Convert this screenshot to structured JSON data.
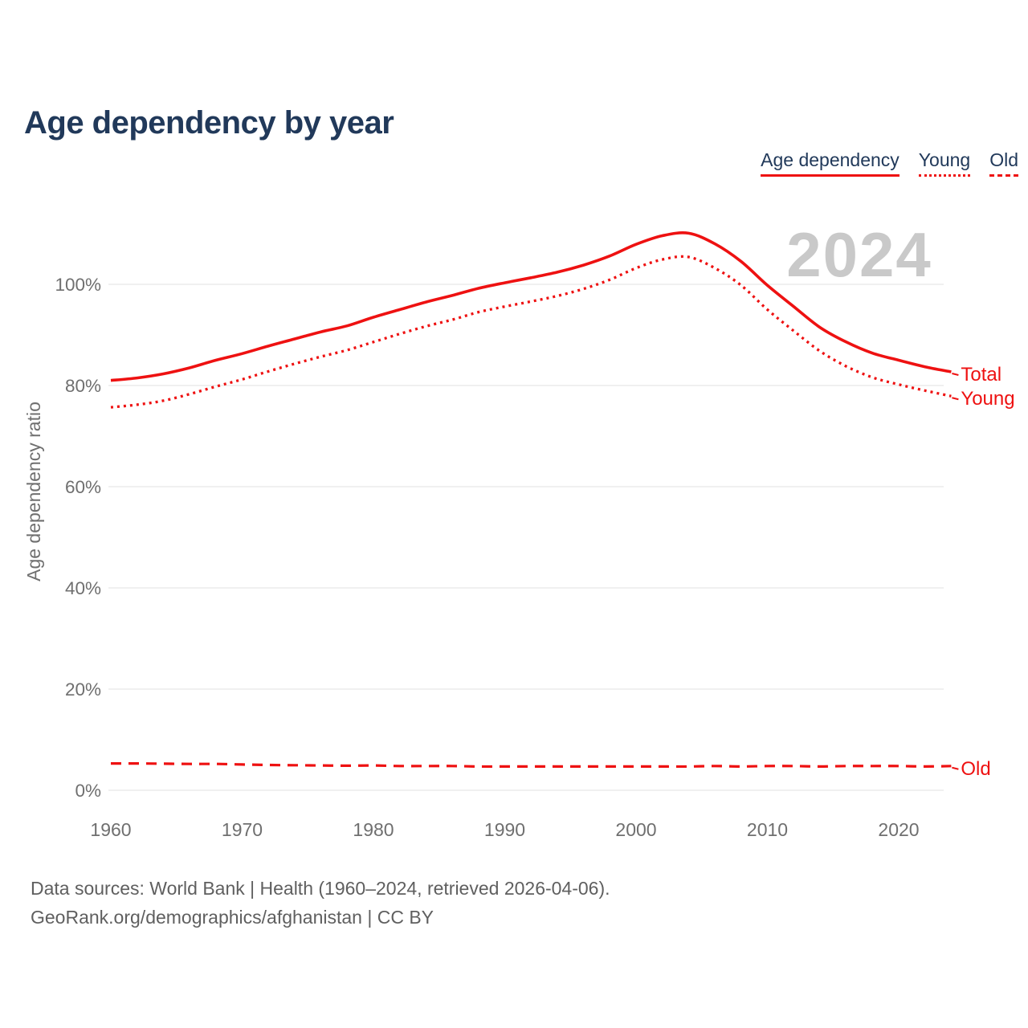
{
  "page": {
    "title": "Age dependency by year",
    "watermark": "2024",
    "footer_line1": "Data sources: World Bank | Health (1960–2024, retrieved 2026-04-06).",
    "footer_line2": "GeoRank.org/demographics/afghanistan | CC BY"
  },
  "legend": {
    "items": [
      {
        "label": "Age dependency",
        "style": "solid"
      },
      {
        "label": "Young",
        "style": "dotted"
      },
      {
        "label": "Old",
        "style": "dashed"
      }
    ]
  },
  "colors": {
    "series_red": "#ee1111",
    "title_navy": "#21395a",
    "grid_gray": "#ececec",
    "axis_text_gray": "#6f6f6f",
    "watermark_gray": "#c9c9c9",
    "footer_gray": "#5f5f5f"
  },
  "chart_data": {
    "type": "line",
    "title": "Age dependency by year",
    "xlabel": "",
    "ylabel": "Age dependency ratio",
    "xlim": [
      1960,
      2024
    ],
    "ylim": [
      0,
      115
    ],
    "grid": "horizontal",
    "legend_position": "top-right",
    "x_ticks": [
      1960,
      1970,
      1980,
      1990,
      2000,
      2010,
      2020
    ],
    "y_ticks": [
      {
        "value": 0,
        "label": "0%"
      },
      {
        "value": 20,
        "label": "20%"
      },
      {
        "value": 40,
        "label": "40%"
      },
      {
        "value": 60,
        "label": "60%"
      },
      {
        "value": 80,
        "label": "80%"
      },
      {
        "value": 100,
        "label": "100%"
      }
    ],
    "x": [
      1960,
      1962,
      1964,
      1966,
      1968,
      1970,
      1972,
      1974,
      1976,
      1978,
      1980,
      1982,
      1984,
      1986,
      1988,
      1990,
      1992,
      1994,
      1996,
      1998,
      2000,
      2002,
      2004,
      2006,
      2008,
      2010,
      2012,
      2014,
      2016,
      2018,
      2020,
      2022,
      2024
    ],
    "series": [
      {
        "name": "Total",
        "end_label": "Total",
        "style": "solid",
        "values": [
          81.0,
          81.5,
          82.3,
          83.5,
          85.0,
          86.3,
          87.8,
          89.2,
          90.6,
          91.8,
          93.5,
          95.0,
          96.5,
          97.8,
          99.2,
          100.3,
          101.3,
          102.4,
          103.8,
          105.6,
          107.9,
          109.6,
          110.1,
          108.0,
          104.5,
          99.8,
          95.6,
          91.5,
          88.6,
          86.4,
          85.0,
          83.7,
          82.7
        ]
      },
      {
        "name": "Young",
        "end_label": "Young",
        "style": "dotted",
        "values": [
          75.7,
          76.2,
          77.0,
          78.3,
          79.8,
          81.2,
          82.8,
          84.3,
          85.7,
          87.0,
          88.6,
          90.2,
          91.7,
          93.0,
          94.5,
          95.6,
          96.6,
          97.7,
          99.1,
          100.9,
          103.2,
          104.9,
          105.4,
          103.2,
          99.8,
          95.0,
          90.8,
          86.8,
          83.8,
          81.6,
          80.2,
          79.0,
          77.9
        ]
      },
      {
        "name": "Old",
        "end_label": "Old",
        "style": "dashed",
        "values": [
          5.3,
          5.3,
          5.25,
          5.2,
          5.2,
          5.1,
          5.0,
          4.95,
          4.9,
          4.85,
          4.9,
          4.8,
          4.8,
          4.8,
          4.7,
          4.7,
          4.7,
          4.7,
          4.7,
          4.7,
          4.7,
          4.7,
          4.7,
          4.8,
          4.7,
          4.8,
          4.8,
          4.7,
          4.8,
          4.8,
          4.8,
          4.7,
          4.8
        ]
      }
    ]
  }
}
